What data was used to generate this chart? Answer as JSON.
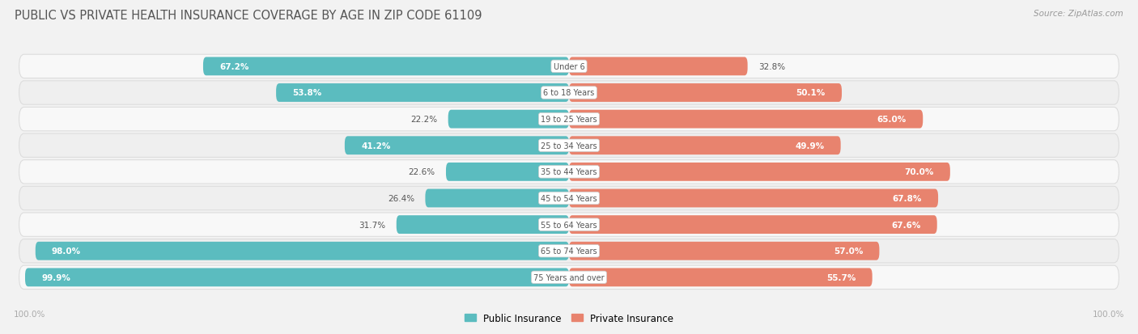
{
  "title": "PUBLIC VS PRIVATE HEALTH INSURANCE COVERAGE BY AGE IN ZIP CODE 61109",
  "source": "Source: ZipAtlas.com",
  "categories": [
    "Under 6",
    "6 to 18 Years",
    "19 to 25 Years",
    "25 to 34 Years",
    "35 to 44 Years",
    "45 to 54 Years",
    "55 to 64 Years",
    "65 to 74 Years",
    "75 Years and over"
  ],
  "public_values": [
    67.2,
    53.8,
    22.2,
    41.2,
    22.6,
    26.4,
    31.7,
    98.0,
    99.9
  ],
  "private_values": [
    32.8,
    50.1,
    65.0,
    49.9,
    70.0,
    67.8,
    67.6,
    57.0,
    55.7
  ],
  "public_color": "#5bbcbf",
  "private_color": "#e8836e",
  "bg_color": "#f2f2f2",
  "row_light": "#f8f8f8",
  "row_dark": "#efefef",
  "title_color": "#555555",
  "source_color": "#999999",
  "value_inside_color": "#ffffff",
  "value_outside_color": "#555555",
  "center_label_color": "#555555",
  "axis_label_color": "#aaaaaa",
  "legend_label_public": "Public Insurance",
  "legend_label_private": "Private Insurance"
}
